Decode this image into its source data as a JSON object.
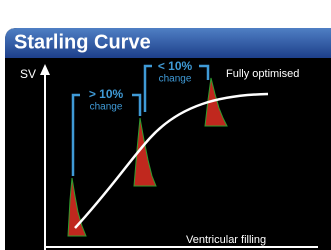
{
  "header": {
    "title": "Starling Curve"
  },
  "axes": {
    "y_label": "SV",
    "x_label": "Ventricular filling"
  },
  "annotations": [
    {
      "label": "> 10%",
      "sub": "change"
    },
    {
      "label": "< 10%",
      "sub": "change"
    }
  ],
  "curve_label": "Fully optimised"
}
